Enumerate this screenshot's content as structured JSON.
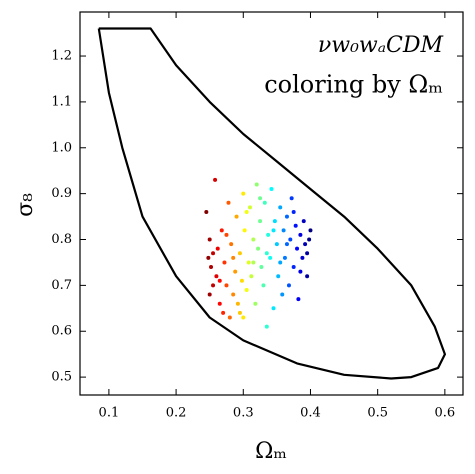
{
  "chart_data": {
    "type": "scatter",
    "title": "νw₀wₐCDM",
    "subtitle": "coloring by Ωₘ",
    "x_label": "Ωₘ",
    "y_label": "σ₈",
    "xlim": [
      0.057,
      0.627
    ],
    "ylim": [
      0.461,
      1.296
    ],
    "xticks": [
      0.1,
      0.2,
      0.3,
      0.4,
      0.5,
      0.6
    ],
    "yticks": [
      0.5,
      0.6,
      0.7,
      0.8,
      0.9,
      {
        "value": 1,
        "label": "1.0"
      },
      1.1,
      1.2
    ],
    "colormap": "jet",
    "series": [
      {
        "x": [
          0.245,
          0.25,
          0.248,
          0.252,
          0.255,
          0.25,
          0.258,
          0.26,
          0.262,
          0.265,
          0.268,
          0.27,
          0.272,
          0.275,
          0.278,
          0.28,
          0.282,
          0.285,
          0.288,
          0.29,
          0.292,
          0.295,
          0.298,
          0.3,
          0.3,
          0.302,
          0.305,
          0.308,
          0.31,
          0.312,
          0.315,
          0.318,
          0.32,
          0.322,
          0.325,
          0.327,
          0.33,
          0.332,
          0.335,
          0.337,
          0.34,
          0.342,
          0.345,
          0.347,
          0.35,
          0.352,
          0.355,
          0.358,
          0.36,
          0.362,
          0.365,
          0.368,
          0.37,
          0.372,
          0.375,
          0.378,
          0.38,
          0.382,
          0.385,
          0.388,
          0.39,
          0.392,
          0.395,
          0.398,
          0.4,
          0.255,
          0.265,
          0.275,
          0.285,
          0.295,
          0.305,
          0.315,
          0.325,
          0.335,
          0.345,
          0.355,
          0.365,
          0.375,
          0.385,
          0.395
        ],
        "y": [
          0.86,
          0.8,
          0.76,
          0.74,
          0.7,
          0.68,
          0.93,
          0.72,
          0.78,
          0.66,
          0.82,
          0.64,
          0.75,
          0.7,
          0.88,
          0.63,
          0.79,
          0.68,
          0.73,
          0.85,
          0.66,
          0.77,
          0.71,
          0.9,
          0.63,
          0.82,
          0.69,
          0.75,
          0.87,
          0.72,
          0.8,
          0.66,
          0.92,
          0.78,
          0.84,
          0.74,
          0.7,
          0.88,
          0.61,
          0.81,
          0.76,
          0.91,
          0.65,
          0.84,
          0.79,
          0.72,
          0.87,
          0.68,
          0.82,
          0.76,
          0.85,
          0.7,
          0.8,
          0.89,
          0.74,
          0.83,
          0.78,
          0.67,
          0.81,
          0.76,
          0.84,
          0.79,
          0.72,
          0.8,
          0.82,
          0.77,
          0.71,
          0.81,
          0.76,
          0.64,
          0.86,
          0.75,
          0.89,
          0.77,
          0.82,
          0.75,
          0.79,
          0.86,
          0.73,
          0.77
        ]
      }
    ],
    "contour": {
      "x": [
        0.085,
        0.162,
        0.2,
        0.25,
        0.3,
        0.35,
        0.4,
        0.45,
        0.5,
        0.55,
        0.585,
        0.6,
        0.59,
        0.55,
        0.52,
        0.45,
        0.38,
        0.3,
        0.25,
        0.2,
        0.15,
        0.12,
        0.1,
        0.085
      ],
      "y": [
        1.26,
        1.26,
        1.18,
        1.1,
        1.03,
        0.97,
        0.91,
        0.85,
        0.78,
        0.7,
        0.61,
        0.55,
        0.52,
        0.5,
        0.497,
        0.505,
        0.53,
        0.58,
        0.63,
        0.72,
        0.85,
        1.0,
        1.12,
        1.26
      ]
    }
  }
}
